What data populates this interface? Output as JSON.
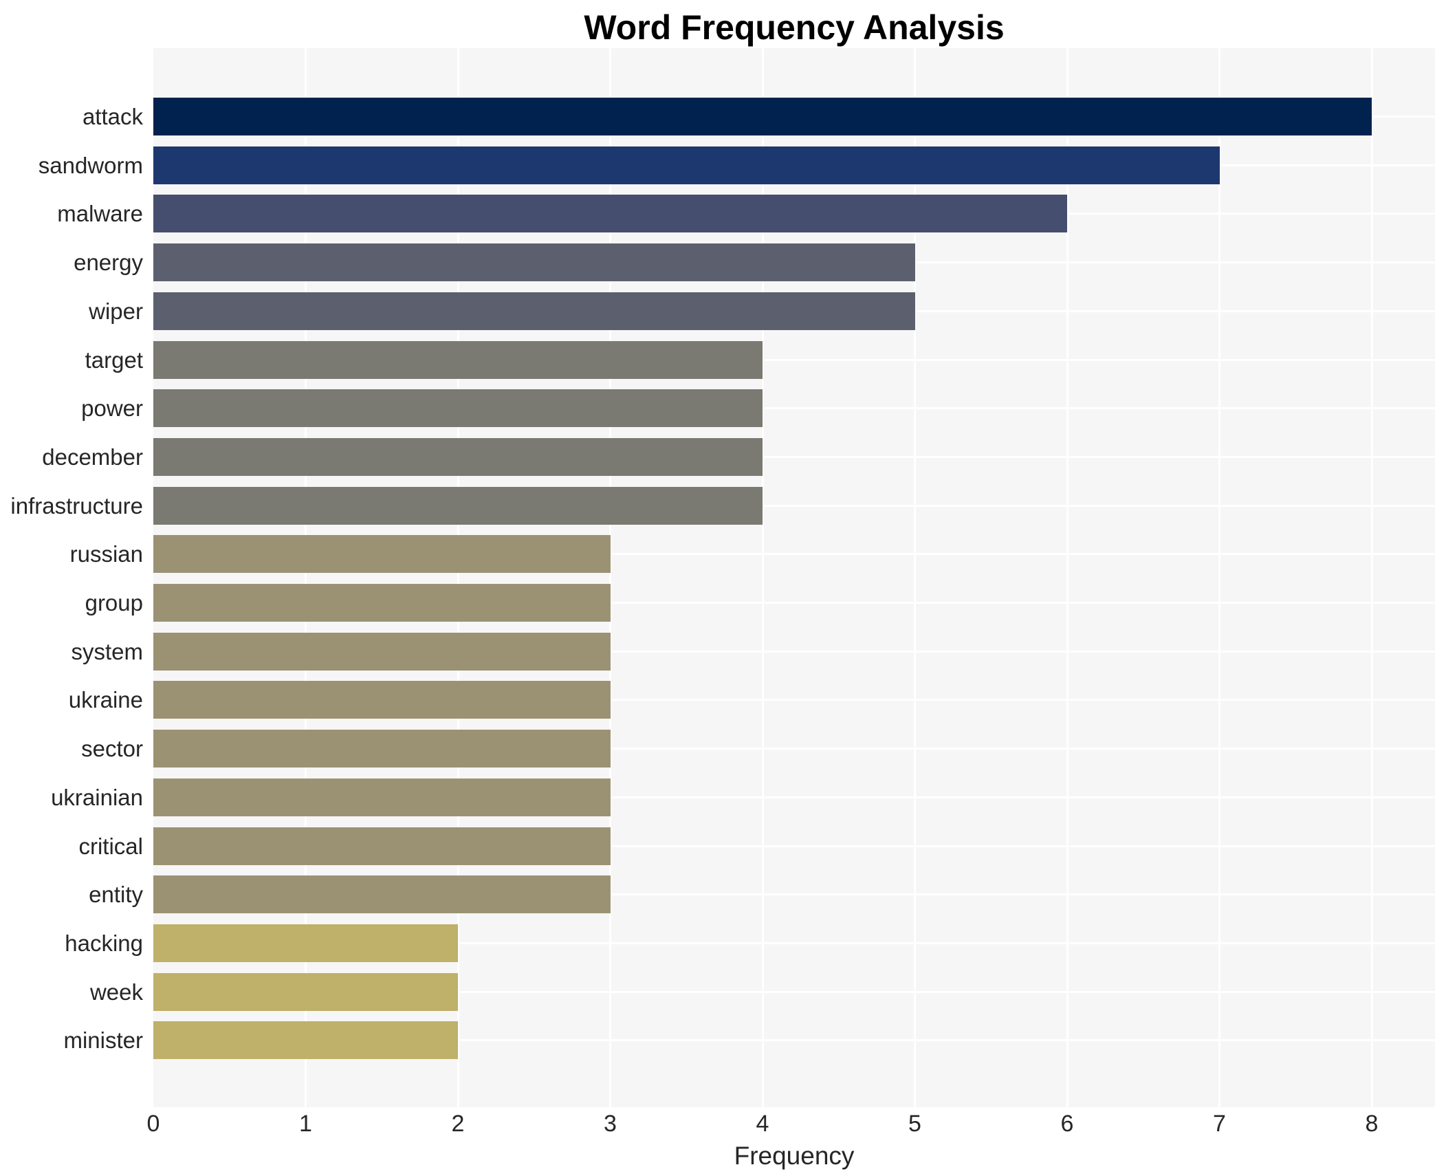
{
  "chart_data": {
    "type": "bar",
    "orientation": "horizontal",
    "title": "Word Frequency Analysis",
    "xlabel": "Frequency",
    "ylabel": "",
    "categories": [
      "attack",
      "sandworm",
      "malware",
      "energy",
      "wiper",
      "target",
      "power",
      "december",
      "infrastructure",
      "russian",
      "group",
      "system",
      "ukraine",
      "sector",
      "ukrainian",
      "critical",
      "entity",
      "hacking",
      "week",
      "minister"
    ],
    "values": [
      8,
      7,
      6,
      5,
      5,
      4,
      4,
      4,
      4,
      3,
      3,
      3,
      3,
      3,
      3,
      3,
      3,
      2,
      2,
      2
    ],
    "xticks": [
      "0",
      "1",
      "2",
      "3",
      "4",
      "5",
      "6",
      "7",
      "8"
    ],
    "xlim": [
      0,
      8.42
    ],
    "grid": true,
    "legend": null,
    "colors": {
      "bar_by_value": {
        "8": "#01224e",
        "7": "#1d386e",
        "6": "#454e6e",
        "5": "#5c5f6e",
        "4": "#7b7a72",
        "3": "#9b9274",
        "2": "#bfb06a"
      },
      "plot_background": "#f6f6f6",
      "gridline": "#ffffff",
      "tick_text": "#262626",
      "title_text": "#000000"
    }
  }
}
